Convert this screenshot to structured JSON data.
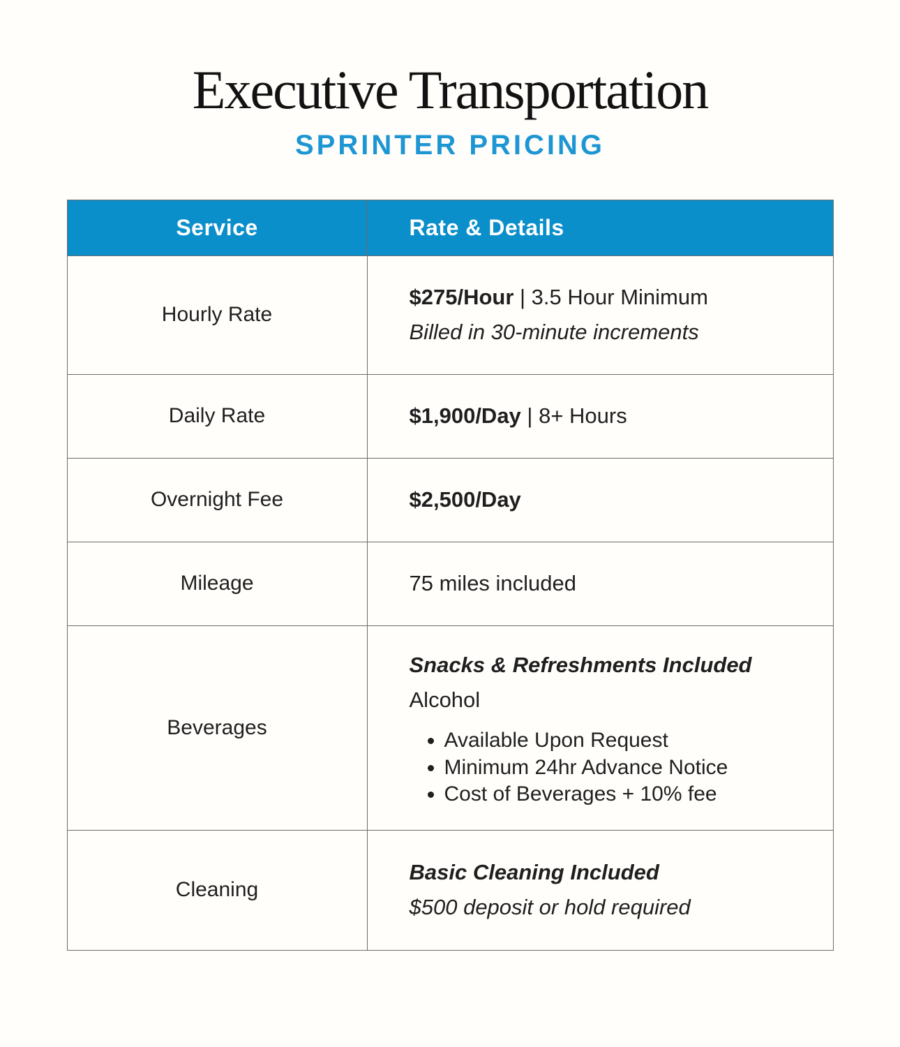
{
  "header": {
    "title": "Executive Transportation",
    "subtitle": "SPRINTER PRICING"
  },
  "colors": {
    "accent_blue": "#0A8FCB",
    "subtitle_blue": "#1D96D3",
    "border_gray": "#6B6B6B",
    "text_dark": "#1F1F1F",
    "header_text": "#FFFFFF",
    "background": "#FFFEFB"
  },
  "table": {
    "columns": [
      "Service",
      "Rate & Details"
    ],
    "rows": [
      {
        "service": "Hourly Rate",
        "lines": [
          {
            "segments": [
              {
                "text": "$275/Hour",
                "bold": true
              },
              {
                "text": " | 3.5 Hour Minimum"
              }
            ]
          },
          {
            "segments": [
              {
                "text": "Billed in 30-minute increments",
                "italic": true
              }
            ]
          }
        ],
        "bullets": []
      },
      {
        "service": "Daily Rate",
        "lines": [
          {
            "segments": [
              {
                "text": "$1,900/Day",
                "bold": true
              },
              {
                "text": " | 8+ Hours"
              }
            ]
          }
        ],
        "bullets": []
      },
      {
        "service": "Overnight Fee",
        "lines": [
          {
            "segments": [
              {
                "text": "$2,500/Day",
                "bold": true
              }
            ]
          }
        ],
        "bullets": []
      },
      {
        "service": "Mileage",
        "lines": [
          {
            "segments": [
              {
                "text": "75 miles included"
              }
            ]
          }
        ],
        "bullets": []
      },
      {
        "service": "Beverages",
        "lines": [
          {
            "segments": [
              {
                "text": "Snacks & Refreshments Included",
                "bold": true,
                "italic": true
              }
            ]
          },
          {
            "segments": [
              {
                "text": "Alcohol"
              }
            ]
          }
        ],
        "bullets": [
          "Available Upon Request",
          "Minimum 24hr Advance Notice",
          "Cost of Beverages + 10% fee"
        ]
      },
      {
        "service": "Cleaning",
        "lines": [
          {
            "segments": [
              {
                "text": "Basic Cleaning Included",
                "bold": true,
                "italic": true
              }
            ]
          },
          {
            "segments": [
              {
                "text": "$500 deposit or hold required",
                "italic": true
              }
            ]
          }
        ],
        "bullets": []
      }
    ]
  }
}
